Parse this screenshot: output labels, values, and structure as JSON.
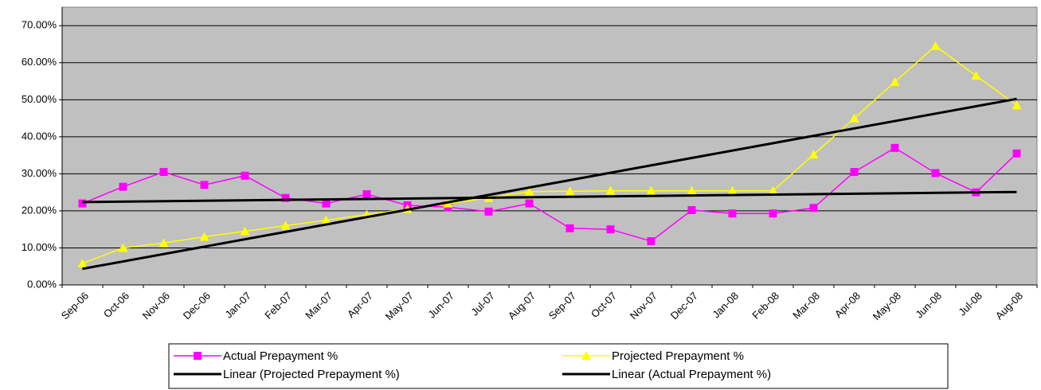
{
  "chart_data": {
    "type": "line",
    "categories": [
      "Sep-06",
      "Oct-06",
      "Nov-06",
      "Dec-06",
      "Jan-07",
      "Feb-07",
      "Mar-07",
      "Apr-07",
      "May-07",
      "Jun-07",
      "Jul-07",
      "Aug-07",
      "Sep-07",
      "Oct-07",
      "Nov-07",
      "Dec-07",
      "Jan-08",
      "Feb-08",
      "Mar-08",
      "Apr-08",
      "May-08",
      "Jun-08",
      "Jul-08",
      "Aug-08"
    ],
    "series": [
      {
        "name": "Actual Prepayment %",
        "color": "#ff00ff",
        "marker": "square",
        "values": [
          22,
          26.5,
          30.5,
          27,
          29.5,
          23.5,
          22,
          24.5,
          21.5,
          21,
          19.8,
          22,
          15.3,
          15,
          11.8,
          20.2,
          19.3,
          19.3,
          20.8,
          30.5,
          37,
          30.2,
          25,
          35.5
        ]
      },
      {
        "name": "Projected Prepayment %",
        "color": "#ffff00",
        "marker": "triangle",
        "values": [
          5.8,
          10,
          11.3,
          13,
          14.5,
          16,
          17.5,
          19,
          20.5,
          22,
          23.5,
          25.2,
          25.3,
          25.4,
          25.4,
          25.4,
          25.4,
          25.4,
          35.2,
          45,
          54.8,
          64.5,
          56.5,
          48.5
        ]
      }
    ],
    "trendlines": [
      {
        "name": "Linear (Projected Prepayment %)",
        "series": 1,
        "color": "#000000"
      },
      {
        "name": "Linear (Actual Prepayment %)",
        "series": 0,
        "color": "#000000"
      }
    ],
    "ylim": [
      0,
      75
    ],
    "yticks": [
      {
        "value": 0,
        "label": "0.00%"
      },
      {
        "value": 10,
        "label": "10.00%"
      },
      {
        "value": 20,
        "label": "20.00%"
      },
      {
        "value": 30,
        "label": "30.00%"
      },
      {
        "value": 40,
        "label": "40.00%"
      },
      {
        "value": 50,
        "label": "50.00%"
      },
      {
        "value": 60,
        "label": "60.00%"
      },
      {
        "value": 70,
        "label": "70.00%"
      }
    ],
    "grid": true,
    "plot_background": "#c0c0c0"
  }
}
